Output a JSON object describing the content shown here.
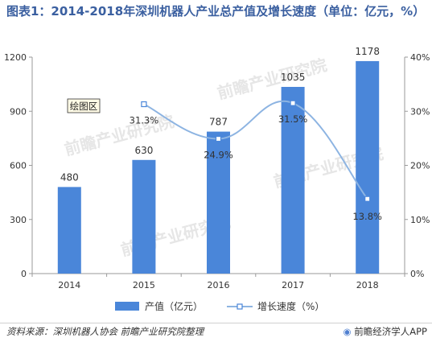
{
  "header": {
    "title": "图表1：2014-2018年深圳机器人产业总产值及增长速度（单位：亿元，%）"
  },
  "plot_area_label": "绘图区",
  "watermark": "前瞻产业研究院",
  "footer": {
    "source": "资料来源：深圳机器人协会 前瞻产业研究院整理",
    "brand": "前瞻经济学人APP",
    "brand_icon": "qianzhan-logo-icon"
  },
  "colors": {
    "bar": "#4a86d9",
    "line": "#8db4e2",
    "marker_fill": "#ffffff",
    "marker_stroke": "#4a86d9",
    "title": "#3a5fa0"
  },
  "chart_data": {
    "type": "bar",
    "categories": [
      "2014",
      "2015",
      "2016",
      "2017",
      "2018"
    ],
    "series": [
      {
        "name": "产值（亿元）",
        "type": "bar",
        "axis": "left",
        "values": [
          480,
          630,
          787,
          1035,
          1178
        ],
        "labels": [
          "480",
          "630",
          "787",
          "1035",
          "1178"
        ]
      },
      {
        "name": "增长速度（%）",
        "type": "line",
        "axis": "right",
        "values": [
          null,
          31.3,
          24.9,
          31.5,
          13.8
        ],
        "labels": [
          "",
          "31.3%",
          "24.9%",
          "31.5%",
          "13.8%"
        ]
      }
    ],
    "y_left": {
      "min": 0,
      "max": 1200,
      "ticks": [
        "0",
        "300",
        "600",
        "900",
        "1200"
      ],
      "tick_values": [
        0,
        300,
        600,
        900,
        1200
      ]
    },
    "y_right": {
      "min": 0,
      "max": 40,
      "ticks": [
        "0%",
        "10%",
        "20%",
        "30%",
        "40%"
      ],
      "tick_values": [
        0,
        10,
        20,
        30,
        40
      ]
    },
    "grid": false,
    "legend_position": "bottom"
  }
}
